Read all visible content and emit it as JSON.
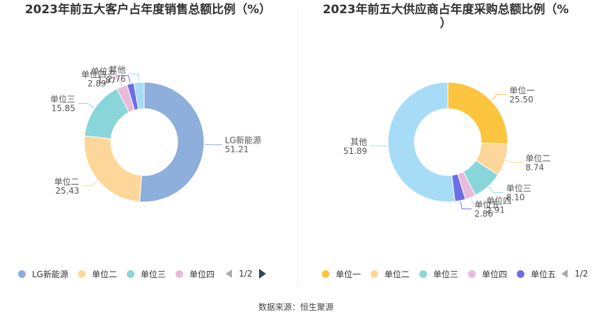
{
  "source_text": "数据来源：恒生聚源",
  "chart_data": [
    {
      "type": "pie",
      "variant": "donut",
      "title": "2023年前五大客户占年度销售总额比例（%）",
      "categories": [
        "LG新能源",
        "单位二",
        "单位三",
        "单位四",
        "单位五",
        "其他"
      ],
      "values": [
        51.21,
        25.43,
        15.85,
        2.89,
        1.87,
        2.76
      ],
      "value_labels": [
        "51.21",
        "25.43",
        "15.85",
        "2.89",
        "1.87",
        "2.76"
      ],
      "colors": [
        "#8eaedb",
        "#fdd799",
        "#88d6d9",
        "#e8bbdb",
        "#6d6ee6",
        "#a7dcf6"
      ],
      "legend_items": [
        "LG新能源",
        "单位二",
        "单位三",
        "单位四"
      ],
      "legend_page": "1/2",
      "legend_position": "bottom"
    },
    {
      "type": "pie",
      "variant": "donut",
      "title_line1": "2023年前五大供应商占年度采购总额比例（%",
      "title_line2": "）",
      "categories": [
        "单位一",
        "单位二",
        "单位三",
        "单位四",
        "单位五",
        "其他"
      ],
      "values": [
        25.5,
        8.74,
        8.1,
        2.91,
        2.86,
        51.89
      ],
      "value_labels": [
        "25.50",
        "8.74",
        "8.10",
        "2.91",
        "2.86",
        "51.89"
      ],
      "colors": [
        "#fcc43f",
        "#fdd799",
        "#88d6d9",
        "#e8bbdb",
        "#6d6ee6",
        "#a7dcf6"
      ],
      "legend_items": [
        "单位一",
        "单位二",
        "单位三",
        "单位四",
        "单位五"
      ],
      "legend_page": "1/2",
      "legend_position": "bottom"
    }
  ]
}
